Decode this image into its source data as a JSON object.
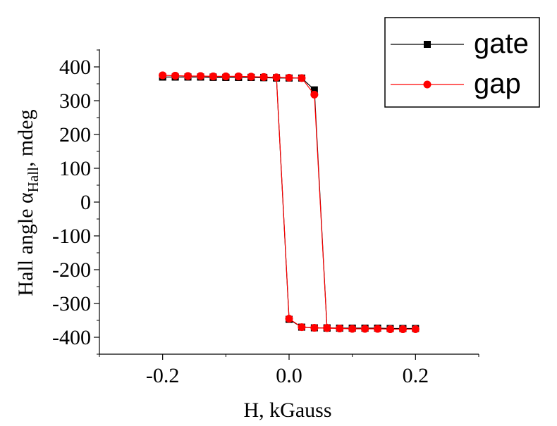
{
  "chart_data": {
    "type": "line",
    "xlabel": "H, kGauss",
    "ylabel": {
      "main": "Hall angle α",
      "subscript": "Hall",
      "suffix": ", mdeg"
    },
    "xlim": [
      -0.3,
      0.3
    ],
    "ylim": [
      -450,
      450
    ],
    "x_ticks": [
      -0.2,
      0.0,
      0.2
    ],
    "x_tick_labels": [
      "-0.2",
      "0.0",
      "0.2"
    ],
    "y_ticks": [
      400,
      300,
      200,
      100,
      0,
      -100,
      -200,
      -300,
      -400
    ],
    "y_tick_labels": [
      "400",
      "300",
      "200",
      "100",
      "0",
      "-100",
      "-200",
      "-300",
      "-400"
    ],
    "grid": false,
    "legend_position": "top-right",
    "series": [
      {
        "name": "gate",
        "color": "#000000",
        "marker": "square",
        "x": [
          -0.2,
          -0.18,
          -0.16,
          -0.14,
          -0.12,
          -0.1,
          -0.08,
          -0.06,
          -0.04,
          -0.02,
          0.0,
          0.02,
          0.04,
          0.06,
          0.08,
          0.1,
          0.12,
          0.14,
          0.16,
          0.18,
          0.2,
          0.18,
          0.16,
          0.14,
          0.12,
          0.1,
          0.08,
          0.06,
          0.04,
          0.02,
          0.0,
          -0.02,
          -0.04,
          -0.06,
          -0.08,
          -0.1,
          -0.12,
          -0.14,
          -0.16,
          -0.18,
          -0.2
        ],
        "y": [
          370,
          370,
          370,
          370,
          369,
          369,
          369,
          369,
          368,
          367,
          367,
          367,
          332,
          -372,
          -373,
          -373,
          -373,
          -373,
          -374,
          -374,
          -374,
          -374,
          -374,
          -373,
          -373,
          -373,
          -373,
          -373,
          -372,
          -370,
          -347,
          368,
          369,
          369,
          369,
          369,
          370,
          370,
          370,
          370,
          370
        ]
      },
      {
        "name": "gap",
        "color": "#ff0000",
        "marker": "circle",
        "x": [
          -0.2,
          -0.18,
          -0.16,
          -0.14,
          -0.12,
          -0.1,
          -0.08,
          -0.06,
          -0.04,
          -0.02,
          0.0,
          0.02,
          0.04,
          0.06,
          0.08,
          0.1,
          0.12,
          0.14,
          0.16,
          0.18,
          0.2,
          0.18,
          0.16,
          0.14,
          0.12,
          0.1,
          0.08,
          0.06,
          0.04,
          0.02,
          0.0,
          -0.02,
          -0.04,
          -0.06,
          -0.08,
          -0.1,
          -0.12,
          -0.14,
          -0.16,
          -0.18,
          -0.2
        ],
        "y": [
          375,
          374,
          373,
          373,
          372,
          372,
          372,
          371,
          370,
          369,
          368,
          367,
          318,
          -372,
          -374,
          -375,
          -375,
          -375,
          -376,
          -376,
          -376,
          -376,
          -376,
          -375,
          -375,
          -375,
          -374,
          -373,
          -372,
          -370,
          -345,
          369,
          370,
          371,
          372,
          372,
          372,
          373,
          373,
          374,
          375
        ]
      }
    ]
  }
}
